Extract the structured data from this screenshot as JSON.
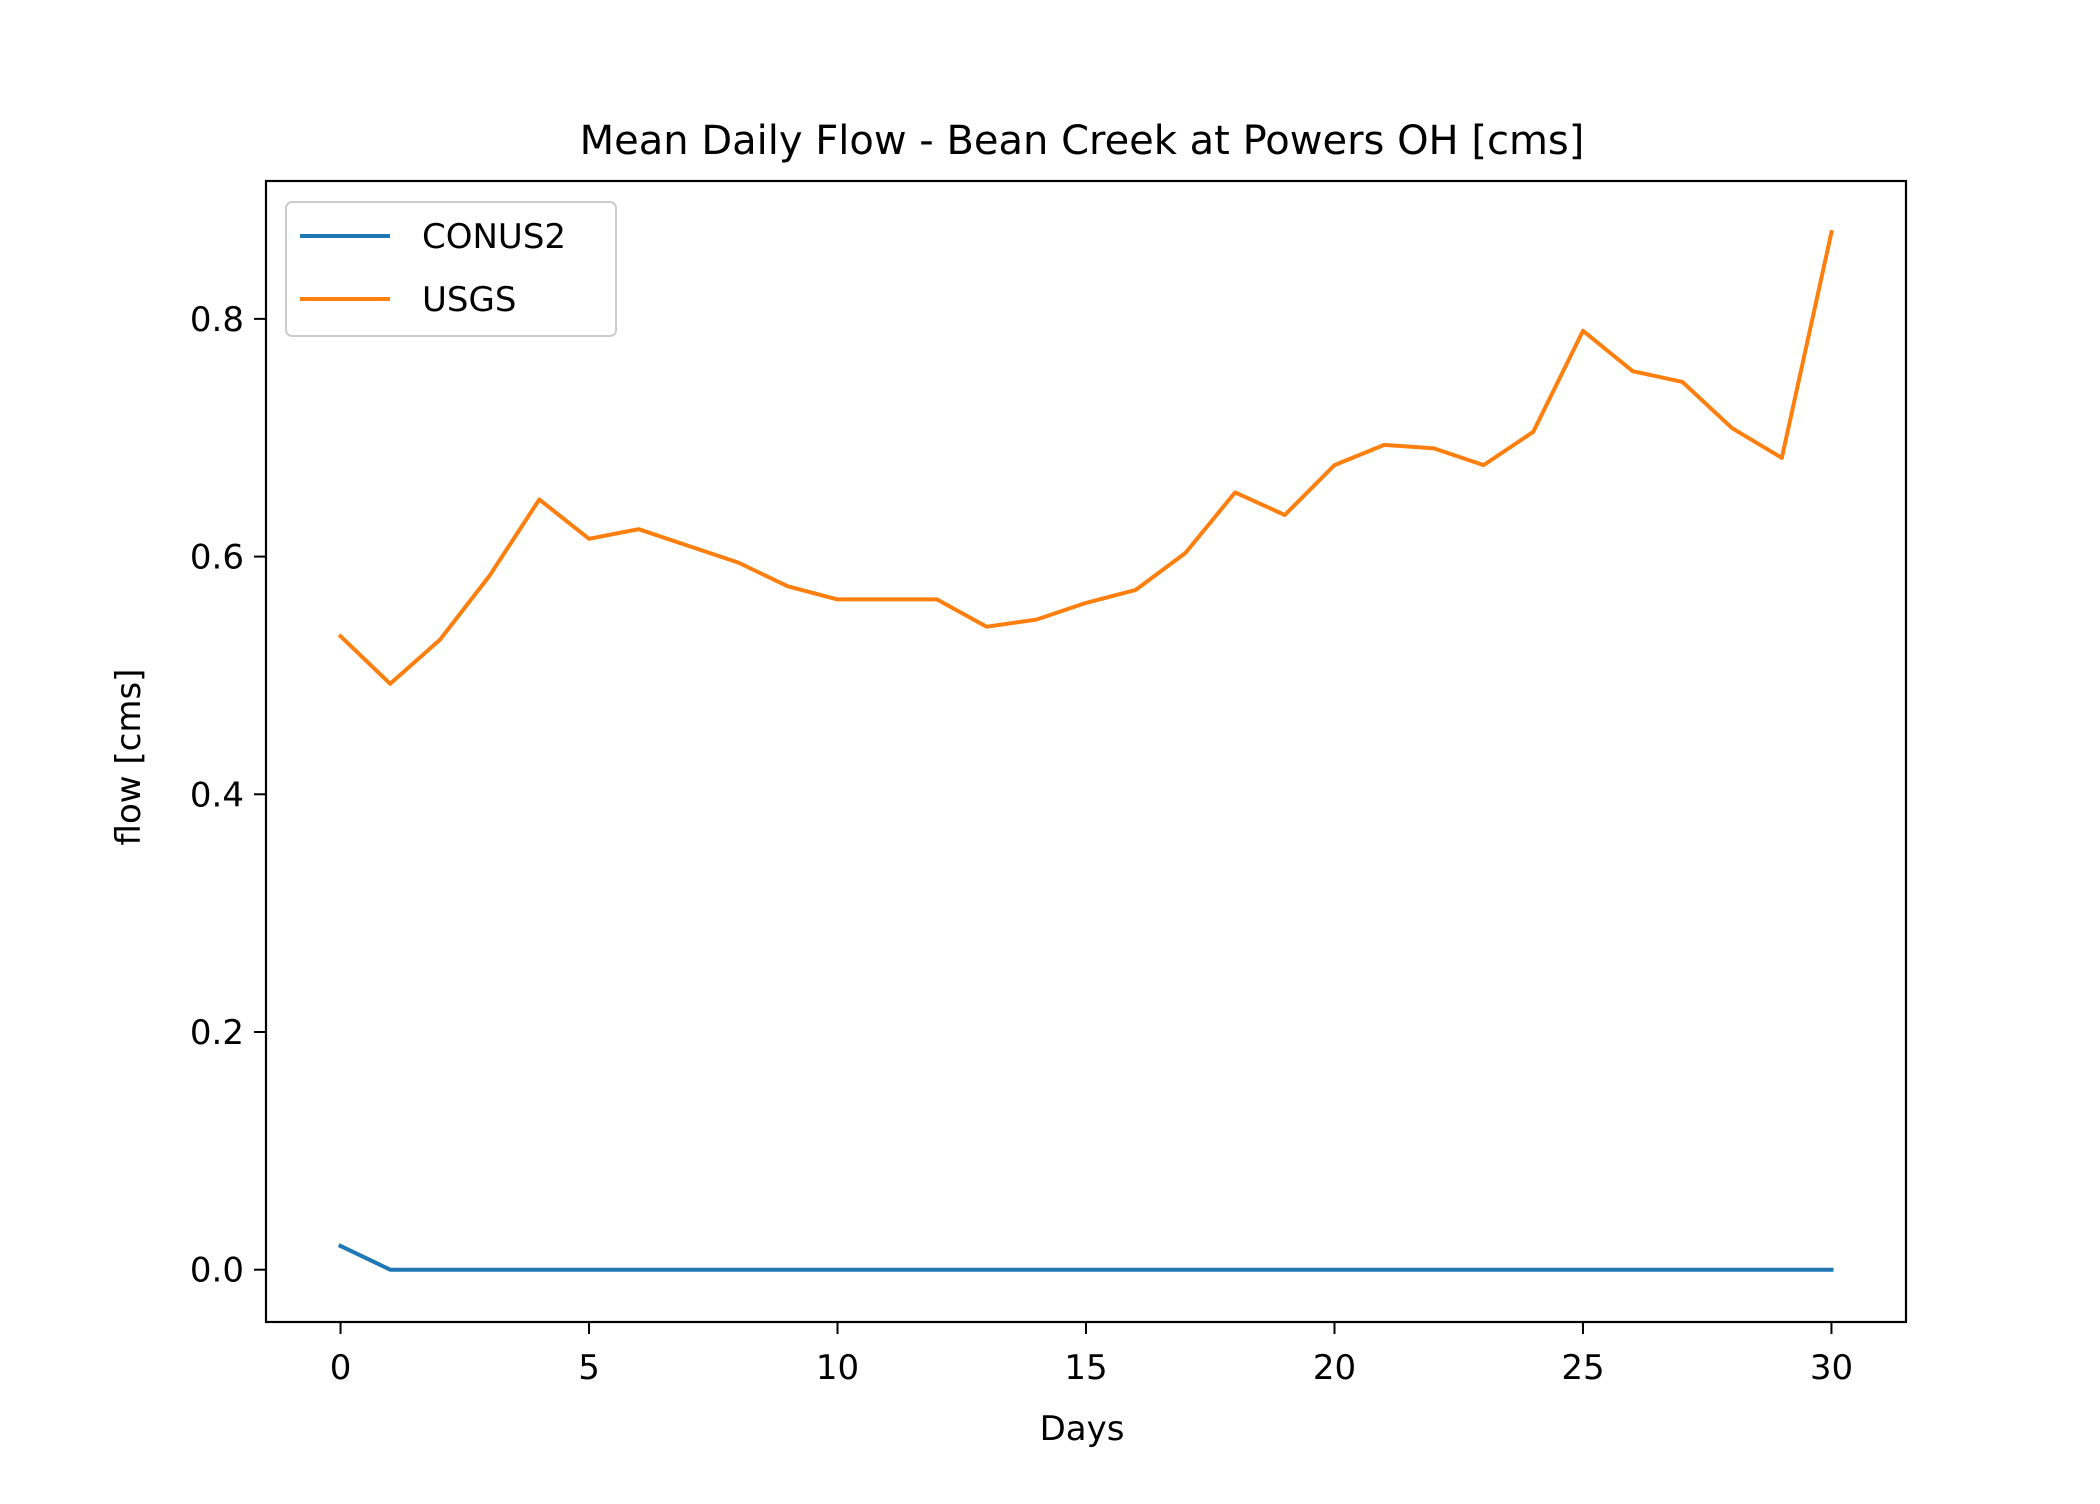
{
  "chart_data": {
    "type": "line",
    "title": "Mean Daily Flow - Bean Creek at Powers OH [cms]",
    "xlabel": "Days",
    "ylabel": "flow [cms]",
    "xlim": [
      -1.5,
      31.5
    ],
    "ylim": [
      -0.044,
      0.916
    ],
    "xticks": [
      0,
      5,
      10,
      15,
      20,
      25,
      30
    ],
    "yticks": [
      0.0,
      0.2,
      0.4,
      0.6,
      0.8
    ],
    "xtick_labels": [
      "0",
      "5",
      "10",
      "15",
      "20",
      "25",
      "30"
    ],
    "ytick_labels": [
      "0.0",
      "0.2",
      "0.4",
      "0.6",
      "0.8"
    ],
    "grid": false,
    "legend_position": "top-left",
    "x": [
      0,
      1,
      2,
      3,
      4,
      5,
      6,
      7,
      8,
      9,
      10,
      11,
      12,
      13,
      14,
      15,
      16,
      17,
      18,
      19,
      20,
      21,
      22,
      23,
      24,
      25,
      26,
      27,
      28,
      29,
      30
    ],
    "series": [
      {
        "name": "CONUS2",
        "color": "#1f77b4",
        "values": [
          0.02,
          0.0,
          0.0,
          0.0,
          0.0,
          0.0,
          0.0,
          0.0,
          0.0,
          0.0,
          0.0,
          0.0,
          0.0,
          0.0,
          0.0,
          0.0,
          0.0,
          0.0,
          0.0,
          0.0,
          0.0,
          0.0,
          0.0,
          0.0,
          0.0,
          0.0,
          0.0,
          0.0,
          0.0,
          0.0,
          0.0
        ]
      },
      {
        "name": "USGS",
        "color": "#ff7f0e",
        "values": [
          0.533,
          0.493,
          0.53,
          0.584,
          0.648,
          0.615,
          0.623,
          0.609,
          0.595,
          0.575,
          0.564,
          0.564,
          0.564,
          0.541,
          0.547,
          0.561,
          0.572,
          0.603,
          0.654,
          0.635,
          0.677,
          0.694,
          0.691,
          0.677,
          0.705,
          0.79,
          0.756,
          0.747,
          0.708,
          0.683,
          0.873
        ]
      }
    ]
  }
}
